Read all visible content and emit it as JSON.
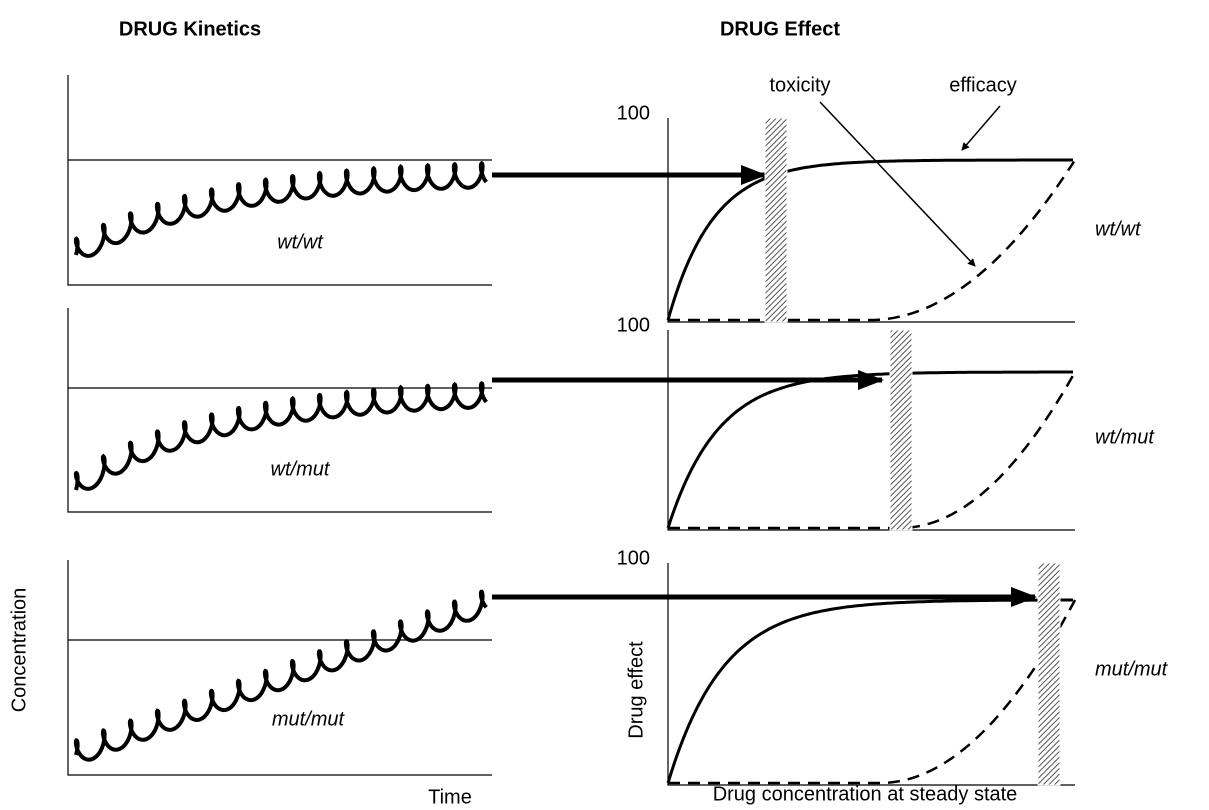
{
  "titles": {
    "kinetics": "DRUG Kinetics",
    "effect": "DRUG Effect"
  },
  "annotations": {
    "toxicity": "toxicity",
    "efficacy": "efficacy"
  },
  "panels": [
    {
      "genotype": "wt/wt",
      "effect_max": "100"
    },
    {
      "genotype": "wt/mut",
      "effect_max": "100"
    },
    {
      "genotype": "mut/mut",
      "effect_max": "100"
    }
  ],
  "axes": {
    "kinetics_y": "Concentration",
    "kinetics_x": "Time",
    "effect_y": "Drug effect",
    "effect_x": "Drug concentration at steady state"
  }
}
